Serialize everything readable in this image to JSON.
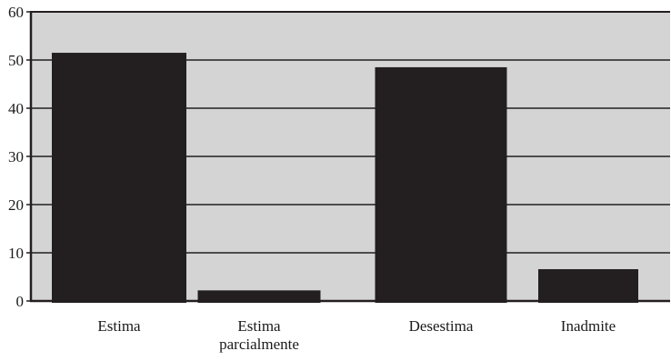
{
  "chart_data": {
    "type": "bar",
    "title": "",
    "xlabel": "",
    "ylabel": "",
    "categories": [
      [
        "Estima"
      ],
      [
        "Estima",
        "parcialmente"
      ],
      [
        "Desestima"
      ],
      [
        "Inadmite"
      ]
    ],
    "values": [
      51.5,
      2.2,
      48.5,
      6.6
    ],
    "ylim": [
      0,
      60
    ],
    "yticks": [
      "0",
      "10",
      "20",
      "30",
      "40",
      "50",
      "60"
    ],
    "grid": true,
    "legend": "none"
  },
  "colors": {
    "plot_background": "#d4d4d4",
    "bar_fill": "#231f20",
    "grid_line": "#231f20",
    "axis": "#231f20"
  }
}
